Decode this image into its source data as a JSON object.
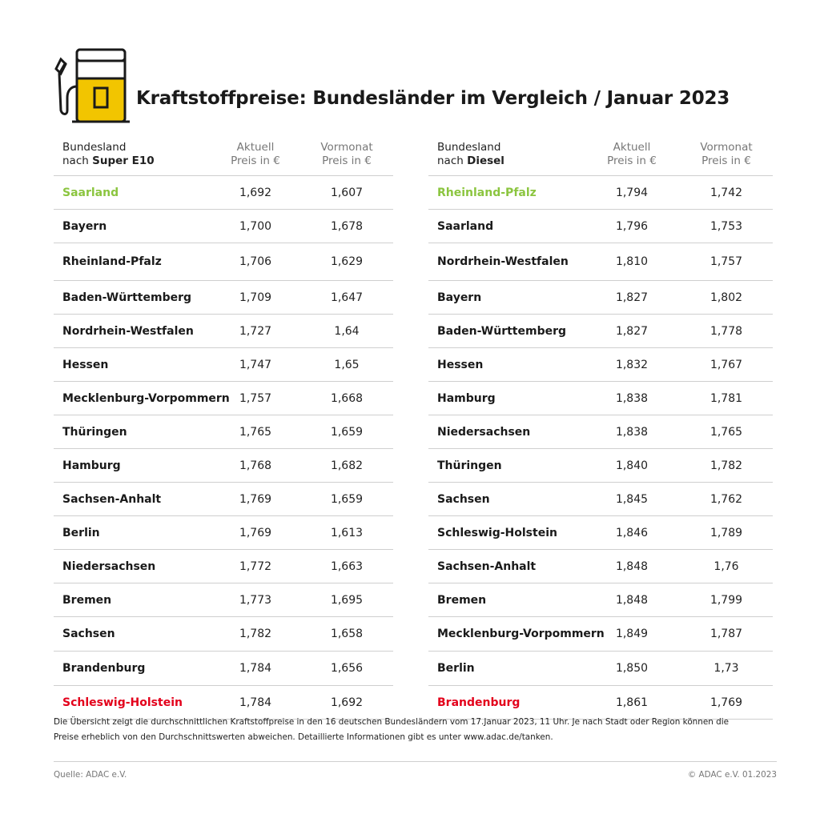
{
  "title": "Kraftstoffpreise: Bundesländer im Vergleich / Januar 2023",
  "icon": "fuel-pump-icon",
  "colors": {
    "best": "#8bc53f",
    "worst": "#e3001b",
    "pump": "#f2c500"
  },
  "left_table": {
    "header": {
      "land_line1": "Bundesland",
      "land_line2_prefix": "nach ",
      "land_line2_bold": "Super E10",
      "current_line1": "Aktuell",
      "current_line2": "Preis in €",
      "previous_line1": "Vormonat",
      "previous_line2": "Preis in €"
    },
    "rows": [
      {
        "name": "Saarland",
        "current": "1,692",
        "previous": "1,607"
      },
      {
        "name": "Bayern",
        "current": "1,700",
        "previous": "1,678"
      },
      {
        "name": "Rheinland-Pfalz",
        "current": "1,706",
        "previous": "1,629"
      },
      {
        "name": "Baden-Württemberg",
        "current": "1,709",
        "previous": "1,647"
      },
      {
        "name": "Nordrhein-Westfalen",
        "current": "1,727",
        "previous": "1,64"
      },
      {
        "name": "Hessen",
        "current": "1,747",
        "previous": "1,65"
      },
      {
        "name": "Mecklenburg-Vorpommern",
        "current": "1,757",
        "previous": "1,668"
      },
      {
        "name": "Thüringen",
        "current": "1,765",
        "previous": "1,659"
      },
      {
        "name": "Hamburg",
        "current": "1,768",
        "previous": "1,682"
      },
      {
        "name": "Sachsen-Anhalt",
        "current": "1,769",
        "previous": "1,659"
      },
      {
        "name": "Berlin",
        "current": "1,769",
        "previous": "1,613"
      },
      {
        "name": "Niedersachsen",
        "current": "1,772",
        "previous": "1,663"
      },
      {
        "name": "Bremen",
        "current": "1,773",
        "previous": "1,695"
      },
      {
        "name": "Sachsen",
        "current": "1,782",
        "previous": "1,658"
      },
      {
        "name": "Brandenburg",
        "current": "1,784",
        "previous": "1,656"
      },
      {
        "name": "Schleswig-Holstein",
        "current": "1,784",
        "previous": "1,692"
      }
    ]
  },
  "right_table": {
    "header": {
      "land_line1": "Bundesland",
      "land_line2_prefix": "nach ",
      "land_line2_bold": "Diesel",
      "current_line1": "Aktuell",
      "current_line2": "Preis in €",
      "previous_line1": "Vormonat",
      "previous_line2": "Preis in €"
    },
    "rows": [
      {
        "name": "Rheinland-Pfalz",
        "current": "1,794",
        "previous": "1,742"
      },
      {
        "name": "Saarland",
        "current": "1,796",
        "previous": "1,753"
      },
      {
        "name": "Nordrhein-Westfalen",
        "current": "1,810",
        "previous": "1,757"
      },
      {
        "name": "Bayern",
        "current": "1,827",
        "previous": "1,802"
      },
      {
        "name": "Baden-Württemberg",
        "current": "1,827",
        "previous": "1,778"
      },
      {
        "name": "Hessen",
        "current": "1,832",
        "previous": "1,767"
      },
      {
        "name": "Hamburg",
        "current": "1,838",
        "previous": "1,781"
      },
      {
        "name": "Niedersachsen",
        "current": "1,838",
        "previous": "1,765"
      },
      {
        "name": "Thüringen",
        "current": "1,840",
        "previous": "1,782"
      },
      {
        "name": "Sachsen",
        "current": "1,845",
        "previous": "1,762"
      },
      {
        "name": "Schleswig-Holstein",
        "current": "1,846",
        "previous": "1,789"
      },
      {
        "name": "Sachsen-Anhalt",
        "current": "1,848",
        "previous": "1,76"
      },
      {
        "name": "Bremen",
        "current": "1,848",
        "previous": "1,799"
      },
      {
        "name": "Mecklenburg-Vorpommern",
        "current": "1,849",
        "previous": "1,787"
      },
      {
        "name": "Berlin",
        "current": "1,850",
        "previous": "1,73"
      },
      {
        "name": "Brandenburg",
        "current": "1,861",
        "previous": "1,769"
      }
    ]
  },
  "note_line1": "Die Übersicht zeigt die durchschnittlichen Kraftstoffpreise in den 16 deutschen Bundesländern vom 17.Januar 2023, 11 Uhr. Je nach Stadt oder Region können die",
  "note_line2": "Preise erheblich von den Durchschnittswerten abweichen. Detaillierte Informationen gibt es unter www.adac.de/tanken.",
  "source": "Quelle: ADAC e.V.",
  "copyright": "© ADAC e.V. 01.2023"
}
